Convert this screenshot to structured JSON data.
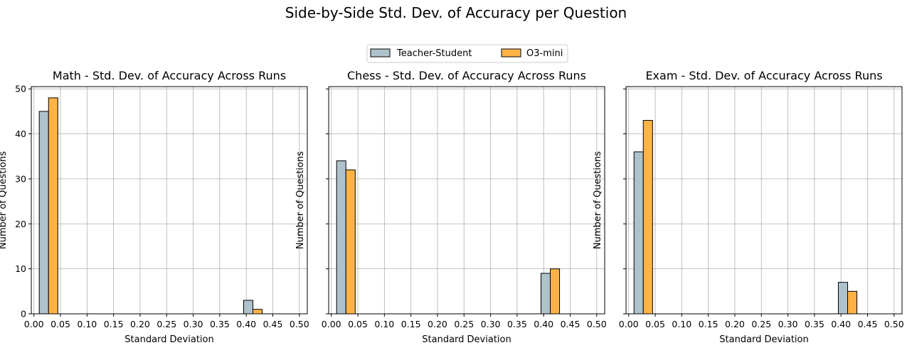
{
  "figure": {
    "title": "Side-by-Side Std. Dev. of Accuracy per Question"
  },
  "legend": {
    "placement": "top-center",
    "entries": [
      {
        "label": "Teacher-Student",
        "color": "#aec2cc"
      },
      {
        "label": "O3-mini",
        "color": "#ffb347"
      }
    ]
  },
  "chart_data": [
    {
      "type": "bar",
      "title": "Math - Std. Dev. of Accuracy Across Runs",
      "xlabel": "Standard Deviation",
      "ylabel": "Number of Questions",
      "xlim": [
        -0.005,
        0.515
      ],
      "ylim": [
        0,
        50.5
      ],
      "xticks": [
        "0.00",
        "0.05",
        "0.10",
        "0.15",
        "0.20",
        "0.25",
        "0.30",
        "0.35",
        "0.40",
        "0.45",
        "0.50"
      ],
      "yticks": [
        "0",
        "10",
        "20",
        "30",
        "40",
        "50"
      ],
      "grid": true,
      "bin_width": 0.035,
      "bin_starts": [
        0.01,
        0.045,
        0.08,
        0.115,
        0.15,
        0.185,
        0.22,
        0.255,
        0.29,
        0.325,
        0.36,
        0.395,
        0.43,
        0.465
      ],
      "series": [
        {
          "name": "Teacher-Student",
          "color": "#aec2cc",
          "values": [
            45,
            0,
            0,
            0,
            0,
            0,
            0,
            0,
            0,
            0,
            0,
            3,
            0,
            0
          ]
        },
        {
          "name": "O3-mini",
          "color": "#ffb347",
          "values": [
            48,
            0,
            0,
            0,
            0,
            0,
            0,
            0,
            0,
            0,
            0,
            1,
            0,
            0
          ]
        }
      ]
    },
    {
      "type": "bar",
      "title": "Chess - Std. Dev. of Accuracy Across Runs",
      "xlabel": "Standard Deviation",
      "ylabel": "Number of Questions",
      "xlim": [
        -0.005,
        0.515
      ],
      "ylim": [
        0,
        50.5
      ],
      "xticks": [
        "0.00",
        "0.05",
        "0.10",
        "0.15",
        "0.20",
        "0.25",
        "0.30",
        "0.35",
        "0.40",
        "0.45",
        "0.50"
      ],
      "yticks": [],
      "grid": true,
      "bin_width": 0.035,
      "bin_starts": [
        0.01,
        0.045,
        0.08,
        0.115,
        0.15,
        0.185,
        0.22,
        0.255,
        0.29,
        0.325,
        0.36,
        0.395,
        0.43,
        0.465
      ],
      "series": [
        {
          "name": "Teacher-Student",
          "color": "#aec2cc",
          "values": [
            34,
            0,
            0,
            0,
            0,
            0,
            0,
            0,
            0,
            0,
            0,
            9,
            0,
            0
          ]
        },
        {
          "name": "O3-mini",
          "color": "#ffb347",
          "values": [
            32,
            0,
            0,
            0,
            0,
            0,
            0,
            0,
            0,
            0,
            0,
            10,
            0,
            0
          ]
        }
      ]
    },
    {
      "type": "bar",
      "title": "Exam - Std. Dev. of Accuracy Across Runs",
      "xlabel": "Standard Deviation",
      "ylabel": "Number of Questions",
      "xlim": [
        -0.005,
        0.515
      ],
      "ylim": [
        0,
        50.5
      ],
      "xticks": [
        "0.00",
        "0.05",
        "0.10",
        "0.15",
        "0.20",
        "0.25",
        "0.30",
        "0.35",
        "0.40",
        "0.45",
        "0.50"
      ],
      "yticks": [],
      "grid": true,
      "bin_width": 0.035,
      "bin_starts": [
        0.01,
        0.045,
        0.08,
        0.115,
        0.15,
        0.185,
        0.22,
        0.255,
        0.29,
        0.325,
        0.36,
        0.395,
        0.43,
        0.465
      ],
      "series": [
        {
          "name": "Teacher-Student",
          "color": "#aec2cc",
          "values": [
            36,
            0,
            0,
            0,
            0,
            0,
            0,
            0,
            0,
            0,
            0,
            7,
            0,
            0
          ]
        },
        {
          "name": "O3-mini",
          "color": "#ffb347",
          "values": [
            43,
            0,
            0,
            0,
            0,
            0,
            0,
            0,
            0,
            0,
            0,
            5,
            0,
            0
          ]
        }
      ]
    }
  ]
}
